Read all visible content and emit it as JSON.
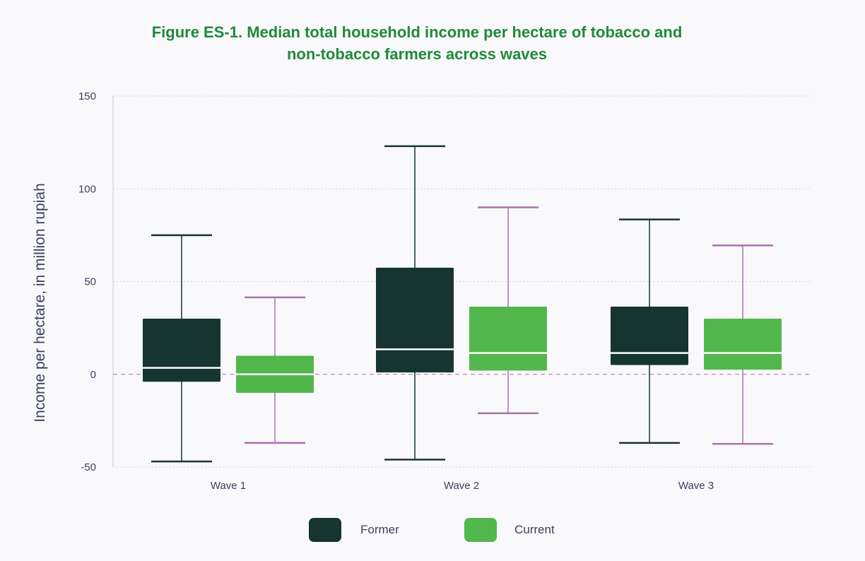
{
  "title_lines": [
    "Figure ES-1. Median total household income per hectare of tobacco and",
    "non-tobacco farmers across waves"
  ],
  "chart_data": {
    "type": "boxplot",
    "categories": [
      "Wave 1",
      "Wave 2",
      "Wave 3"
    ],
    "ylabel": "Income per hectare, in million rupiah",
    "xlabel": "",
    "ylim": [
      -50,
      150
    ],
    "yticks": [
      -50,
      0,
      50,
      100,
      150
    ],
    "grid": true,
    "zero_line": "dashed",
    "legend_position": "bottom",
    "series": [
      {
        "name": "Former",
        "color": "#163430",
        "whisker_color": "#163430",
        "data": [
          {
            "min": -47,
            "q1": -4,
            "median": 3.5,
            "q3": 30,
            "max": 75
          },
          {
            "min": -46,
            "q1": 1,
            "median": 13.5,
            "q3": 57.5,
            "max": 123
          },
          {
            "min": -37,
            "q1": 5,
            "median": 11.5,
            "q3": 36.5,
            "max": 83.5
          }
        ]
      },
      {
        "name": "Current",
        "color": "#52b74c",
        "whisker_color": "#a872a8",
        "data": [
          {
            "min": -37,
            "q1": -10,
            "median": 0,
            "q3": 10,
            "max": 41.5
          },
          {
            "min": -21,
            "q1": 2,
            "median": 11.5,
            "q3": 36.5,
            "max": 90
          },
          {
            "min": -37.5,
            "q1": 2.5,
            "median": 11.5,
            "q3": 30,
            "max": 69.5
          }
        ]
      }
    ]
  }
}
